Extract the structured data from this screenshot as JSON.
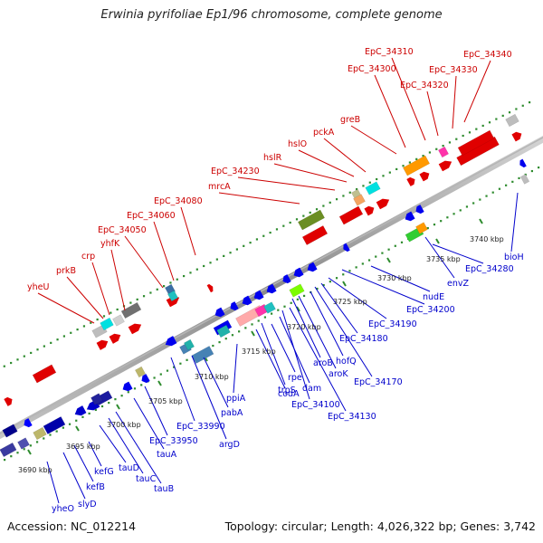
{
  "header": {
    "title": "Erwinia pyrifoliae Ep1/96 chromosome, complete genome"
  },
  "footer": {
    "accession": "Accession: NC_012214",
    "topology": "Topology: circular; Length: 4,026,322 bp; Genes: 3,742"
  },
  "colors": {
    "forward_label": "#cc0000",
    "reverse_label": "#0000cc",
    "backbone": "#999999",
    "tick": "#2e8b2e"
  },
  "scale_labels": [
    "3690 kbp",
    "3695 kbp",
    "3700 kbp",
    "3705 kbp",
    "3710 kbp",
    "3715 kbp",
    "3720 kbp",
    "3725 kbp",
    "3730 kbp",
    "3735 kbp",
    "3740 kbp"
  ],
  "forward_genes": [
    "yheU",
    "prkB",
    "crp",
    "yhfK",
    "EpC_34050",
    "EpC_34060",
    "EpC_34080",
    "mrcA",
    "EpC_34230",
    "hslR",
    "hslO",
    "pckA",
    "greB",
    "EpC_34300",
    "EpC_34310",
    "EpC_34320",
    "EpC_34330",
    "EpC_34340"
  ],
  "reverse_genes": [
    "yheO",
    "slyD",
    "kefB",
    "kefG",
    "tauD",
    "tauC",
    "tauB",
    "tauA",
    "EpC_33950",
    "EpC_33990",
    "argD",
    "pabA",
    "ppiA",
    "codA",
    "trpS",
    "rpe",
    "dam",
    "EpC_34100",
    "EpC_34130",
    "aroB",
    "aroK",
    "hofQ",
    "EpC_34170",
    "EpC_34180",
    "EpC_34190",
    "EpC_34200",
    "nudE",
    "envZ",
    "EpC_34280",
    "bioH"
  ]
}
